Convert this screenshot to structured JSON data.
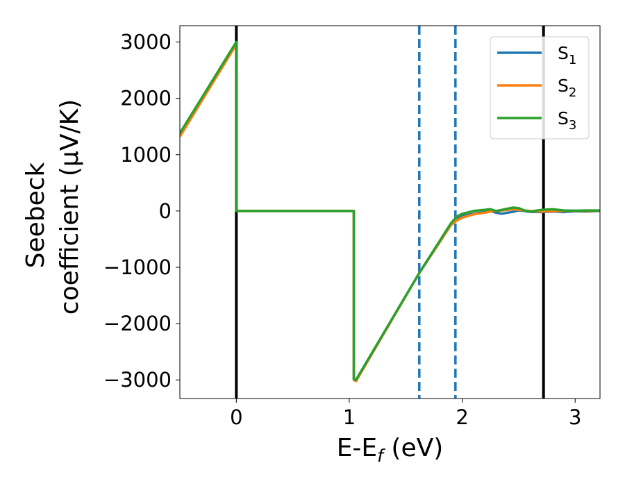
{
  "chart_data": {
    "type": "line",
    "title": "",
    "xlabel_parts": [
      "E-E",
      "f",
      " (eV)"
    ],
    "ylabel_lines": [
      "Seebeck",
      "coefficient  (μV/K)"
    ],
    "xlim": [
      -0.5,
      3.22
    ],
    "ylim": [
      -3330,
      3290
    ],
    "xticks": [
      0,
      1,
      2,
      3
    ],
    "xtick_labels": [
      "0",
      "1",
      "2",
      "3"
    ],
    "yticks": [
      3000,
      2000,
      1000,
      0,
      -1000,
      -2000,
      -3000
    ],
    "ytick_labels": [
      "3000",
      "2000",
      "1000",
      "0",
      "−1000",
      "−2000",
      "−3000"
    ],
    "grid": false,
    "legend_position": "top-right",
    "legend": [
      {
        "base": "S",
        "sub": "1",
        "color": "#1f77b4"
      },
      {
        "base": "S",
        "sub": "2",
        "color": "#ff7f0e"
      },
      {
        "base": "S",
        "sub": "3",
        "color": "#2ca02c"
      }
    ],
    "vlines": [
      {
        "x": 0.0,
        "color": "#000000",
        "style": "solid"
      },
      {
        "x": 2.72,
        "color": "#000000",
        "style": "solid"
      },
      {
        "x": 1.62,
        "color": "#1f77b4",
        "style": "dashed"
      },
      {
        "x": 1.94,
        "color": "#1f77b4",
        "style": "dashed"
      }
    ],
    "series": [
      {
        "color": "#1f77b4",
        "x": [
          -0.5,
          0.0,
          0.0,
          1.04,
          1.04,
          1.06,
          1.62,
          1.9,
          1.95,
          2.0,
          2.1,
          2.2,
          2.25,
          2.3,
          2.35,
          2.4,
          2.45,
          2.5,
          2.55,
          2.6,
          2.7,
          2.8,
          2.9,
          3.0,
          3.1,
          3.22
        ],
        "y": [
          1370,
          3000,
          0,
          0,
          -2990,
          -3000,
          -1100,
          -250,
          -150,
          -90,
          -50,
          -20,
          -5,
          -30,
          -50,
          -30,
          -15,
          10,
          0,
          -15,
          -20,
          -10,
          -20,
          -5,
          -10,
          0
        ]
      },
      {
        "color": "#ff7f0e",
        "x": [
          -0.5,
          0.0,
          0.0,
          1.04,
          1.04,
          1.06,
          1.62,
          1.9,
          1.95,
          2.0,
          2.1,
          2.2,
          2.25,
          2.3,
          2.35,
          2.4,
          2.45,
          2.5,
          2.55,
          2.6,
          2.7,
          2.8,
          2.9,
          3.0,
          3.1,
          3.22
        ],
        "y": [
          1320,
          2960,
          0,
          0,
          -3000,
          -3020,
          -1100,
          -250,
          -170,
          -120,
          -60,
          -30,
          -10,
          0,
          10,
          20,
          30,
          20,
          10,
          0,
          -10,
          -5,
          0,
          5,
          0,
          5
        ]
      },
      {
        "color": "#2ca02c",
        "x": [
          -0.5,
          0.0,
          0.0,
          1.04,
          1.04,
          1.06,
          1.62,
          1.9,
          1.95,
          2.0,
          2.1,
          2.2,
          2.25,
          2.3,
          2.35,
          2.4,
          2.45,
          2.5,
          2.55,
          2.6,
          2.7,
          2.8,
          2.9,
          3.0,
          3.1,
          3.22
        ],
        "y": [
          1380,
          3000,
          0,
          0,
          -2990,
          -3000,
          -1100,
          -220,
          -100,
          -50,
          0,
          20,
          30,
          0,
          20,
          40,
          60,
          50,
          10,
          -10,
          20,
          30,
          10,
          5,
          10,
          10
        ]
      }
    ]
  }
}
